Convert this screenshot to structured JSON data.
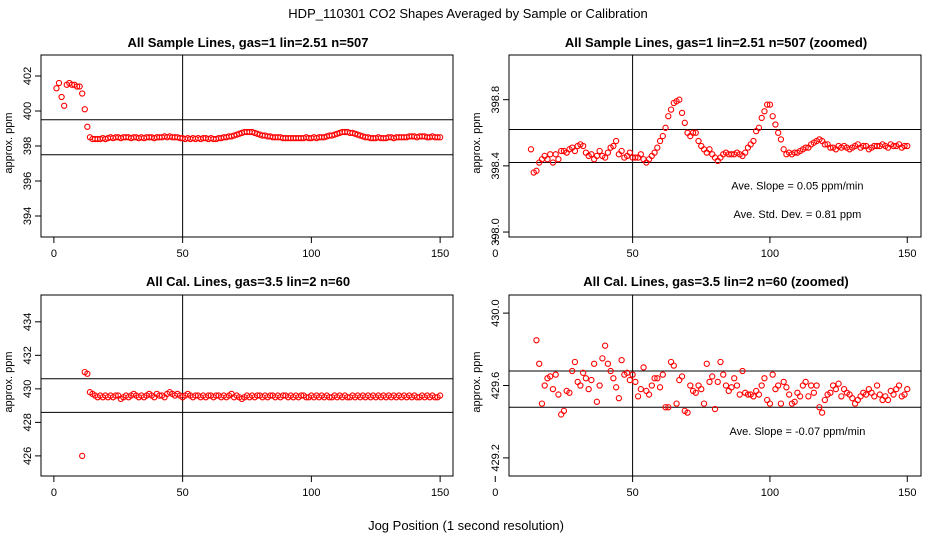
{
  "figure": {
    "title": "HDP_110301  CO2 Shapes Averaged by Sample or Calibration",
    "xlabel": "Jog Position (1 second resolution)",
    "colors": {
      "points": "#ff0000",
      "axes": "#000000",
      "background": "#ffffff"
    }
  },
  "chart_data": [
    {
      "type": "scatter",
      "title": "All Sample Lines, gas=1 lin=2.51 n=507",
      "xlabel": "",
      "ylabel": "approx. ppm",
      "xlim": [
        -5,
        155
      ],
      "ylim": [
        392.8,
        403.2
      ],
      "xticks": [
        0,
        50,
        100,
        150
      ],
      "xtick_labels": [
        "0",
        "50",
        "100",
        "150"
      ],
      "yticks": [
        394,
        396,
        398,
        400,
        402
      ],
      "ytick_labels": [
        "394",
        "396",
        "398",
        "400",
        "402"
      ],
      "hlines": [
        399.5,
        397.5
      ],
      "vlines": [
        50
      ],
      "annotations": [],
      "series": [
        {
          "name": "sample lines",
          "x_start": 1,
          "x_step": 1,
          "y": [
            401.3,
            401.6,
            400.8,
            400.3,
            401.5,
            401.6,
            401.5,
            401.5,
            401.4,
            401.4,
            401.0,
            400.1,
            399.1,
            398.5,
            398.4,
            398.4,
            398.4,
            398.4,
            398.45,
            398.4,
            398.45,
            398.5,
            398.45,
            398.5,
            398.5,
            398.45,
            398.5,
            398.5,
            398.5,
            398.45,
            398.5,
            398.5,
            398.45,
            398.5,
            398.45,
            398.5,
            398.5,
            398.5,
            398.45,
            398.5,
            398.5,
            398.5,
            398.55,
            398.5,
            398.55,
            398.5,
            398.5,
            398.5,
            398.45,
            398.45,
            398.4,
            398.45,
            398.4,
            398.45,
            398.4,
            398.45,
            398.4,
            398.45,
            398.45,
            398.4,
            398.45,
            398.4,
            398.4,
            398.45,
            398.45,
            398.5,
            398.5,
            398.55,
            398.55,
            398.6,
            398.65,
            398.7,
            398.75,
            398.8,
            398.8,
            398.8,
            398.8,
            398.75,
            398.7,
            398.65,
            398.6,
            398.6,
            398.55,
            398.55,
            398.5,
            398.5,
            398.5,
            398.5,
            398.45,
            398.45,
            398.45,
            398.45,
            398.45,
            398.45,
            398.45,
            398.45,
            398.45,
            398.5,
            398.45,
            398.45,
            398.5,
            398.45,
            398.5,
            398.5,
            398.5,
            398.55,
            398.6,
            398.6,
            398.65,
            398.7,
            398.75,
            398.8,
            398.8,
            398.8,
            398.75,
            398.75,
            398.7,
            398.65,
            398.6,
            398.55,
            398.5,
            398.5,
            398.45,
            398.45,
            398.45,
            398.5,
            398.45,
            398.45,
            398.45,
            398.5,
            398.5,
            398.45,
            398.5,
            398.5,
            398.5,
            398.5,
            398.5,
            398.55,
            398.55,
            398.55,
            398.5,
            398.55,
            398.55,
            398.55,
            398.5,
            398.5,
            398.55,
            398.5,
            398.5,
            398.5
          ]
        }
      ]
    },
    {
      "type": "scatter",
      "title": "All Sample Lines, gas=1 lin=2.51 n=507 (zoomed)",
      "xlabel": "",
      "ylabel": "approx. ppm",
      "xlim": [
        5,
        155
      ],
      "ylim": [
        397.97,
        399.07
      ],
      "xticks": [
        0,
        50,
        100,
        150
      ],
      "xtick_labels": [
        "0",
        "50",
        "100",
        "150"
      ],
      "yticks": [
        398.0,
        398.4,
        398.8
      ],
      "ytick_labels": [
        "398.0",
        "398.4",
        "398.8"
      ],
      "hlines": [
        398.62,
        398.42
      ],
      "vlines": [
        50
      ],
      "annotations": [
        {
          "text": "Ave. Slope =  0.05  ppm/min",
          "x": 110,
          "y": 398.28
        },
        {
          "text": "Ave. Std. Dev. =  0.81  ppm",
          "x": 110,
          "y": 398.11
        }
      ],
      "series": [
        {
          "name": "sample lines zoomed",
          "x_start": 13,
          "x_step": 1,
          "y": [
            398.5,
            398.36,
            398.37,
            398.42,
            398.44,
            398.46,
            398.44,
            398.47,
            398.42,
            398.47,
            398.44,
            398.49,
            398.49,
            398.48,
            398.5,
            398.51,
            398.49,
            398.52,
            398.53,
            398.52,
            398.48,
            398.46,
            398.47,
            398.44,
            398.46,
            398.49,
            398.46,
            398.45,
            398.48,
            398.51,
            398.52,
            398.55,
            398.47,
            398.49,
            398.45,
            398.46,
            398.48,
            398.45,
            398.45,
            398.45,
            398.47,
            398.44,
            398.42,
            398.44,
            398.46,
            398.48,
            398.51,
            398.55,
            398.58,
            398.63,
            398.7,
            398.74,
            398.78,
            398.79,
            398.8,
            398.72,
            398.66,
            398.6,
            398.58,
            398.6,
            398.6,
            398.55,
            398.52,
            398.5,
            398.48,
            398.5,
            398.47,
            398.45,
            398.43,
            398.45,
            398.47,
            398.48,
            398.47,
            398.47,
            398.47,
            398.48,
            398.47,
            398.46,
            398.48,
            398.51,
            398.53,
            398.55,
            398.61,
            398.63,
            398.69,
            398.73,
            398.77,
            398.77,
            398.7,
            398.65,
            398.6,
            398.56,
            398.5,
            398.47,
            398.48,
            398.47,
            398.48,
            398.48,
            398.49,
            398.5,
            398.51,
            398.51,
            398.53,
            398.54,
            398.55,
            398.56,
            398.55,
            398.53,
            398.53,
            398.51,
            398.51,
            398.5,
            398.52,
            398.51,
            398.52,
            398.51,
            398.5,
            398.51,
            398.52,
            398.53,
            398.51,
            398.52,
            398.52,
            398.5,
            398.51,
            398.52,
            398.52,
            398.52,
            398.53,
            398.52,
            398.51,
            398.53,
            398.52,
            398.52,
            398.53,
            398.51,
            398.52,
            398.52
          ]
        }
      ]
    },
    {
      "type": "scatter",
      "title": "All Cal. Lines, gas=3.5 lin=2 n=60",
      "xlabel": "",
      "ylabel": "approx. ppm",
      "xlim": [
        -5,
        155
      ],
      "ylim": [
        424.8,
        435.6
      ],
      "xticks": [
        0,
        50,
        100,
        150
      ],
      "xtick_labels": [
        "0",
        "50",
        "100",
        "150"
      ],
      "yticks": [
        426,
        428,
        430,
        432,
        434
      ],
      "ytick_labels": [
        "426",
        "428",
        "430",
        "432",
        "434"
      ],
      "hlines": [
        430.6,
        428.6
      ],
      "vlines": [
        50
      ],
      "annotations": [],
      "series": [
        {
          "name": "cal lines",
          "x_start": 11,
          "x_step": 1,
          "y": [
            426.0,
            431.0,
            430.9,
            429.8,
            429.7,
            429.6,
            429.5,
            429.6,
            429.5,
            429.6,
            429.5,
            429.6,
            429.5,
            429.6,
            429.6,
            429.4,
            429.5,
            429.6,
            429.5,
            429.6,
            429.7,
            429.6,
            429.5,
            429.6,
            429.5,
            429.6,
            429.7,
            429.6,
            429.5,
            429.7,
            429.6,
            429.6,
            429.5,
            429.7,
            429.8,
            429.7,
            429.6,
            429.7,
            429.6,
            429.5,
            429.6,
            429.7,
            429.6,
            429.5,
            429.6,
            429.6,
            429.5,
            429.6,
            429.5,
            429.6,
            429.6,
            429.5,
            429.6,
            429.6,
            429.5,
            429.6,
            429.5,
            429.6,
            429.7,
            429.5,
            429.6,
            429.5,
            429.4,
            429.5,
            429.6,
            429.5,
            429.6,
            429.5,
            429.6,
            429.6,
            429.5,
            429.6,
            429.5,
            429.6,
            429.6,
            429.5,
            429.6,
            429.5,
            429.6,
            429.6,
            429.5,
            429.6,
            429.5,
            429.6,
            429.5,
            429.6,
            429.6,
            429.5,
            429.5,
            429.6,
            429.5,
            429.6,
            429.5,
            429.6,
            429.5,
            429.6,
            429.5,
            429.5,
            429.6,
            429.5,
            429.6,
            429.5,
            429.6,
            429.5,
            429.5,
            429.6,
            429.5,
            429.6,
            429.5,
            429.6,
            429.5,
            429.6,
            429.5,
            429.6,
            429.5,
            429.6,
            429.5,
            429.6,
            429.5,
            429.6,
            429.5,
            429.6,
            429.5,
            429.6,
            429.5,
            429.6,
            429.5,
            429.6,
            429.5,
            429.6,
            429.5,
            429.5,
            429.6,
            429.5,
            429.6,
            429.5,
            429.6,
            429.5,
            429.5,
            429.6
          ]
        }
      ]
    },
    {
      "type": "scatter",
      "title": "All Cal. Lines, gas=3.5 lin=2 n=60 (zoomed)",
      "xlabel": "",
      "ylabel": "approx. ppm",
      "xlim": [
        5,
        155
      ],
      "ylim": [
        429.1,
        430.1
      ],
      "xticks": [
        0,
        50,
        100,
        150
      ],
      "xtick_labels": [
        "0",
        "50",
        "100",
        "150"
      ],
      "yticks": [
        429.2,
        429.6,
        430.0
      ],
      "ytick_labels": [
        "429.2",
        "429.6",
        "430.0"
      ],
      "hlines": [
        429.68,
        429.48
      ],
      "vlines": [
        50
      ],
      "annotations": [
        {
          "text": "Ave. Slope =  -0.07  ppm/min",
          "x": 110,
          "y": 429.35
        }
      ],
      "series": [
        {
          "name": "cal lines zoomed",
          "x_start": 15,
          "x_step": 1,
          "y": [
            429.85,
            429.72,
            429.5,
            429.6,
            429.64,
            429.65,
            429.58,
            429.66,
            429.55,
            429.44,
            429.46,
            429.57,
            429.56,
            429.68,
            429.73,
            429.62,
            429.6,
            429.67,
            429.64,
            429.58,
            429.63,
            429.72,
            429.51,
            429.6,
            429.75,
            429.82,
            429.72,
            429.68,
            429.64,
            429.59,
            429.53,
            429.74,
            429.66,
            429.67,
            429.63,
            429.66,
            429.62,
            429.54,
            429.58,
            429.7,
            429.57,
            429.55,
            429.6,
            429.64,
            429.64,
            429.59,
            429.66,
            429.48,
            429.48,
            429.73,
            429.71,
            429.5,
            429.63,
            429.65,
            429.46,
            429.45,
            429.6,
            429.57,
            429.56,
            429.6,
            429.58,
            429.5,
            429.72,
            429.62,
            429.65,
            429.47,
            429.62,
            429.73,
            429.66,
            429.6,
            429.57,
            429.59,
            429.64,
            429.6,
            429.55,
            429.68,
            429.56,
            429.55,
            429.55,
            429.54,
            429.57,
            429.55,
            429.6,
            429.64,
            429.52,
            429.5,
            429.66,
            429.58,
            429.6,
            429.5,
            429.62,
            429.59,
            429.55,
            429.5,
            429.51,
            429.56,
            429.54,
            429.6,
            429.62,
            429.54,
            429.6,
            429.56,
            429.6,
            429.48,
            429.45,
            429.52,
            429.55,
            429.56,
            429.6,
            429.58,
            429.61,
            429.54,
            429.58,
            429.56,
            429.55,
            429.53,
            429.5,
            429.52,
            429.54,
            429.56,
            429.55,
            429.58,
            429.56,
            429.54,
            429.6,
            429.55,
            429.52,
            429.54,
            429.52,
            429.57,
            429.55,
            429.58,
            429.6,
            429.54,
            429.55,
            429.58
          ]
        }
      ]
    }
  ]
}
